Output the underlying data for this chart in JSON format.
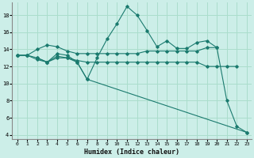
{
  "xlabel": "Humidex (Indice chaleur)",
  "background_color": "#cceee8",
  "grid_color": "#aaddcc",
  "line_color": "#1a7a6e",
  "xlim": [
    -0.5,
    23.5
  ],
  "ylim": [
    3.5,
    19.5
  ],
  "yticks": [
    4,
    6,
    8,
    10,
    12,
    14,
    16,
    18
  ],
  "xticks": [
    0,
    1,
    2,
    3,
    4,
    5,
    6,
    7,
    8,
    9,
    10,
    11,
    12,
    13,
    14,
    15,
    16,
    17,
    18,
    19,
    20,
    21,
    22,
    23
  ],
  "series": [
    {
      "x": [
        0,
        1,
        2,
        3,
        4,
        5,
        6,
        7,
        8,
        9,
        10,
        11,
        12,
        13,
        14,
        15,
        16,
        17,
        18,
        19,
        20
      ],
      "y": [
        13.3,
        13.3,
        14.0,
        14.5,
        14.3,
        13.8,
        13.5,
        13.5,
        13.5,
        13.5,
        13.5,
        13.5,
        13.5,
        13.8,
        13.8,
        13.8,
        13.8,
        13.8,
        13.8,
        14.2,
        14.2
      ]
    },
    {
      "x": [
        2,
        3,
        4,
        5,
        6,
        7,
        8,
        9,
        10,
        11,
        12,
        13,
        14,
        15,
        16,
        17,
        18,
        19,
        20,
        21,
        22,
        23
      ],
      "y": [
        13.0,
        12.5,
        13.5,
        13.3,
        12.5,
        10.5,
        13.0,
        15.2,
        17.0,
        19.0,
        18.0,
        16.2,
        14.3,
        15.0,
        14.1,
        14.1,
        14.8,
        15.0,
        14.2,
        8.0,
        5.0,
        4.3
      ]
    },
    {
      "x": [
        0,
        1,
        2,
        3,
        4,
        5,
        6,
        7,
        8,
        9,
        10,
        11,
        12,
        13,
        14,
        15,
        16,
        17,
        18,
        19,
        20,
        21,
        22
      ],
      "y": [
        13.3,
        13.3,
        12.8,
        12.5,
        13.2,
        13.0,
        12.7,
        12.5,
        12.5,
        12.5,
        12.5,
        12.5,
        12.5,
        12.5,
        12.5,
        12.5,
        12.5,
        12.5,
        12.5,
        12.0,
        12.0,
        12.0,
        12.0
      ]
    },
    {
      "x": [
        0,
        1,
        2,
        3,
        4,
        5,
        6,
        7,
        23
      ],
      "y": [
        13.3,
        13.3,
        13.0,
        12.5,
        13.0,
        13.0,
        12.5,
        10.5,
        4.3
      ]
    }
  ]
}
